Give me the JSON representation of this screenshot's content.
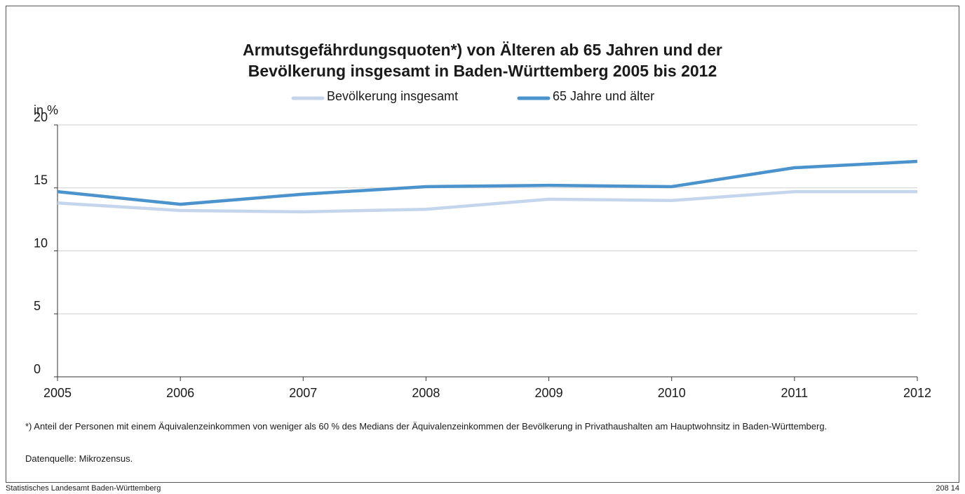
{
  "chart_data": {
    "type": "line",
    "title": [
      "Armutsgefährdungsquoten*) von Älteren ab 65 Jahren und der",
      "Bevölkerung insgesamt in Baden-Württemberg 2005 bis 2012"
    ],
    "y_label": "in %",
    "x": [
      2005,
      2006,
      2007,
      2008,
      2009,
      2010,
      2011,
      2012
    ],
    "xlim": [
      2005,
      2012
    ],
    "xticks": [
      2005,
      2006,
      2007,
      2008,
      2009,
      2010,
      2011,
      2012
    ],
    "ylim": [
      0,
      20
    ],
    "yticks": [
      0,
      5,
      10,
      15,
      20
    ],
    "grid": true,
    "series": [
      {
        "name": "Bevölkerung insgesamt",
        "color": "#c5d6ec",
        "values": [
          13.8,
          13.2,
          13.1,
          13.3,
          14.1,
          14.0,
          14.7,
          14.7
        ]
      },
      {
        "name": "65 Jahre und älter",
        "color": "#4a93cc",
        "values": [
          14.7,
          13.7,
          14.5,
          15.1,
          15.2,
          15.1,
          16.6,
          17.1
        ]
      }
    ],
    "notes": [
      "*) Anteil der Personen mit einem Äquivalenzeinkommen von weniger als 60 % des Medians der Äquivalenzeinkommen der Bevölkerung in Privathaushalten am Hauptwohnsitz in Baden-Württemberg.",
      "Datenquelle: Mikrozensus."
    ],
    "source": "Statistisches Landesamt Baden-Württemberg",
    "code": "208 14"
  }
}
